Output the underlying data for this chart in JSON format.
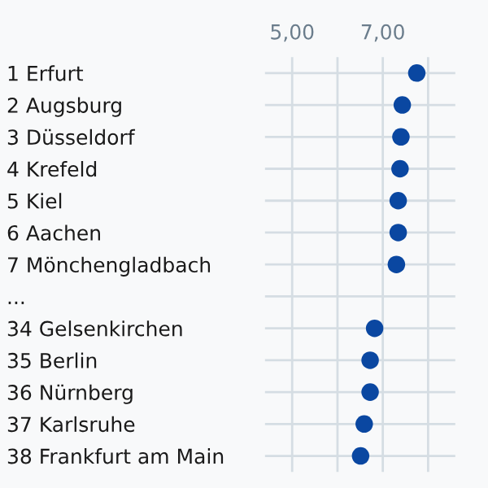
{
  "chart_data": {
    "type": "scatter",
    "categories": [
      "1 Erfurt",
      "2 Augsburg",
      "3 Düsseldorf",
      "4 Krefeld",
      "5 Kiel",
      "6 Aachen",
      "7 Mönchengladbach",
      "...",
      "34 Gelsenkirchen",
      "35 Berlin",
      "36 Nürnberg",
      "37 Karlsruhe",
      "38 Frankfurt am Main"
    ],
    "series": [
      {
        "color": "#0a47a1",
        "values": [
          7.75,
          7.43,
          7.4,
          7.38,
          7.34,
          7.34,
          7.3,
          null,
          6.82,
          6.72,
          6.72,
          6.59,
          6.51
        ]
      }
    ],
    "orientation": "horizontal",
    "xlim": [
      4.4,
      8.6
    ],
    "xticks": [
      {
        "value": 5,
        "label": "5,00"
      },
      {
        "value": 6,
        "label": null
      },
      {
        "value": 7,
        "label": "7,00"
      },
      {
        "value": 8,
        "label": null
      }
    ],
    "grid": true,
    "marker": "circle"
  }
}
